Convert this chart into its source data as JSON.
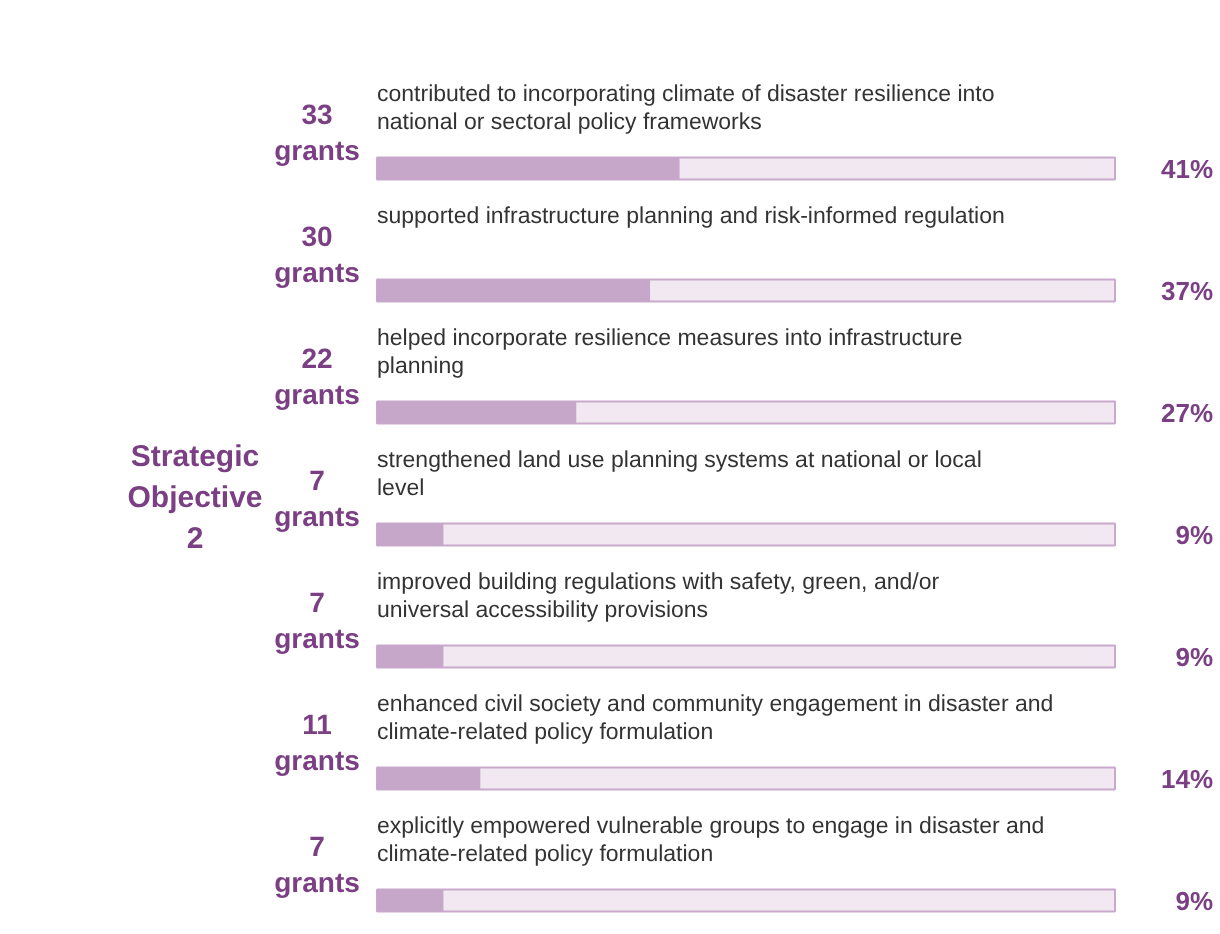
{
  "chart_data": {
    "type": "bar",
    "orientation": "horizontal",
    "title": "Strategic Objective 2",
    "categories": [
      "contributed to incorporating climate of disaster resilience into national or sectoral policy frameworks",
      "supported infrastructure planning and risk-informed regulation",
      "helped incorporate resilience measures into infrastructure planning",
      "strengthened land use planning systems at national or local level",
      "improved building regulations with safety, green, and/or universal accessibility provisions",
      "enhanced civil society and community engagement in disaster and climate-related policy formulation",
      "explicitly empowered vulnerable groups to engage in disaster and climate-related policy formulation"
    ],
    "values": [
      41,
      37,
      27,
      9,
      9,
      14,
      9
    ],
    "value_labels": [
      "41%",
      "37%",
      "27%",
      "9%",
      "9%",
      "14%",
      "9%"
    ],
    "color": "#c6a6c9",
    "xlim": [
      0,
      100
    ],
    "tick_labels": false,
    "annotations": [
      "33 grants",
      "30 grants",
      "22 grants",
      "7 grants",
      "7 grants",
      "11 grants",
      "7 grants"
    ]
  }
}
